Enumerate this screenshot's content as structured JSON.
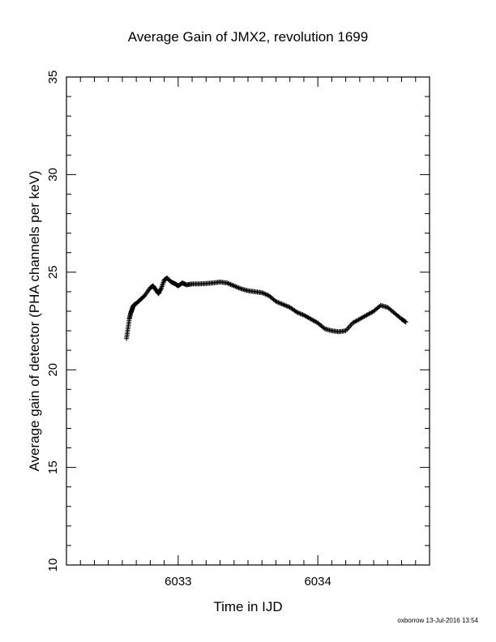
{
  "chart_data": {
    "type": "scatter",
    "title": "Average Gain of JMX2, revolution 1699",
    "xlabel": "Time in IJD",
    "ylabel": "Average gain of detector (PHA channels per keV)",
    "xlim": [
      6032.2,
      6034.8
    ],
    "ylim": [
      10,
      35
    ],
    "x_ticks": [
      6033,
      6034
    ],
    "y_ticks": [
      10,
      15,
      20,
      25,
      30,
      35
    ],
    "marker": "+",
    "grid": false,
    "series": [
      {
        "x": [
          6032.63,
          6032.64,
          6032.65,
          6032.66,
          6032.67,
          6032.68,
          6032.7,
          6032.73,
          6032.76,
          6032.8,
          6032.82,
          6032.84,
          6032.86,
          6032.88,
          6032.9,
          6032.92,
          6032.95,
          6032.98,
          6033.0,
          6033.03,
          6033.06,
          6033.1,
          6033.15,
          6033.2,
          6033.25,
          6033.3,
          6033.35,
          6033.4,
          6033.45,
          6033.5,
          6033.55,
          6033.6,
          6033.65,
          6033.7,
          6033.75,
          6033.8,
          6033.85,
          6033.9,
          6033.95,
          6034.0,
          6034.05,
          6034.1,
          6034.15,
          6034.2,
          6034.25,
          6034.3,
          6034.35,
          6034.4,
          6034.45,
          6034.5,
          6034.55,
          6034.6,
          6034.63
        ],
        "y": [
          21.6,
          22.1,
          22.6,
          22.9,
          23.1,
          23.3,
          23.4,
          23.6,
          23.8,
          24.2,
          24.3,
          24.1,
          23.9,
          24.2,
          24.6,
          24.7,
          24.5,
          24.4,
          24.3,
          24.45,
          24.35,
          24.4,
          24.4,
          24.42,
          24.45,
          24.5,
          24.45,
          24.3,
          24.15,
          24.05,
          24.0,
          23.95,
          23.8,
          23.5,
          23.35,
          23.2,
          22.95,
          22.8,
          22.6,
          22.4,
          22.1,
          22.0,
          21.95,
          22.0,
          22.4,
          22.6,
          22.8,
          23.0,
          23.3,
          23.2,
          22.9,
          22.6,
          22.45
        ]
      }
    ]
  },
  "footer": "oxborrow 13-Jul-2016 13:54"
}
